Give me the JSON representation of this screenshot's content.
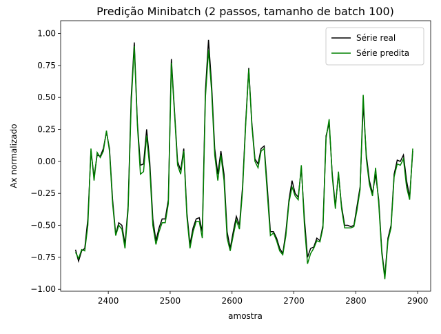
{
  "chart_data": {
    "type": "line",
    "title": "Predição Minibatch (2 passos, tamanho de batch 100)",
    "x_label": "amostra",
    "y_label": "Ax normalizado",
    "x": [
      2347,
      2352,
      2357,
      2362,
      2367,
      2372,
      2377,
      2382,
      2387,
      2392,
      2397,
      2402,
      2407,
      2412,
      2417,
      2422,
      2427,
      2432,
      2437,
      2442,
      2447,
      2452,
      2457,
      2462,
      2467,
      2472,
      2477,
      2482,
      2487,
      2492,
      2497,
      2502,
      2507,
      2512,
      2517,
      2522,
      2527,
      2532,
      2537,
      2542,
      2547,
      2552,
      2557,
      2562,
      2567,
      2572,
      2577,
      2582,
      2587,
      2592,
      2597,
      2602,
      2607,
      2612,
      2617,
      2622,
      2627,
      2632,
      2637,
      2642,
      2647,
      2652,
      2657,
      2662,
      2667,
      2672,
      2677,
      2682,
      2687,
      2692,
      2697,
      2702,
      2707,
      2712,
      2717,
      2722,
      2727,
      2732,
      2737,
      2742,
      2747,
      2752,
      2757,
      2762,
      2767,
      2772,
      2777,
      2782,
      2787,
      2792,
      2797,
      2802,
      2807,
      2812,
      2817,
      2822,
      2827,
      2832,
      2837,
      2842,
      2847,
      2852,
      2857,
      2862,
      2867,
      2872,
      2877,
      2882,
      2887,
      2892
    ],
    "series": [
      {
        "name": "Série real",
        "color": "#000000",
        "values": [
          -0.69,
          -0.78,
          -0.7,
          -0.68,
          -0.45,
          0.08,
          -0.12,
          0.05,
          0.04,
          0.1,
          0.23,
          0.1,
          -0.3,
          -0.57,
          -0.48,
          -0.5,
          -0.65,
          -0.35,
          0.5,
          0.93,
          0.3,
          -0.03,
          -0.02,
          0.25,
          0.0,
          -0.45,
          -0.62,
          -0.52,
          -0.45,
          -0.45,
          -0.3,
          0.8,
          0.4,
          0.0,
          -0.07,
          0.1,
          -0.4,
          -0.65,
          -0.52,
          -0.45,
          -0.44,
          -0.55,
          0.55,
          0.95,
          0.6,
          0.1,
          -0.1,
          0.08,
          -0.1,
          -0.55,
          -0.68,
          -0.55,
          -0.43,
          -0.5,
          -0.2,
          0.3,
          0.73,
          0.3,
          0.02,
          -0.02,
          0.1,
          0.12,
          -0.2,
          -0.55,
          -0.55,
          -0.6,
          -0.68,
          -0.72,
          -0.55,
          -0.3,
          -0.15,
          -0.25,
          -0.28,
          -0.05,
          -0.45,
          -0.75,
          -0.68,
          -0.67,
          -0.6,
          -0.62,
          -0.5,
          0.2,
          0.3,
          -0.1,
          -0.35,
          -0.1,
          -0.35,
          -0.5,
          -0.5,
          -0.51,
          -0.5,
          -0.35,
          -0.2,
          0.45,
          0.05,
          -0.15,
          -0.25,
          -0.1,
          -0.3,
          -0.7,
          -0.9,
          -0.6,
          -0.5,
          -0.1,
          0.01,
          0.0,
          0.05,
          -0.15,
          -0.28,
          0.08
        ]
      },
      {
        "name": "Série predita",
        "color": "#008000",
        "values": [
          -0.71,
          -0.76,
          -0.69,
          -0.7,
          -0.5,
          0.1,
          -0.15,
          0.07,
          0.03,
          0.08,
          0.24,
          0.08,
          -0.33,
          -0.58,
          -0.5,
          -0.53,
          -0.68,
          -0.38,
          0.45,
          0.9,
          0.28,
          -0.1,
          -0.08,
          0.2,
          -0.05,
          -0.5,
          -0.65,
          -0.55,
          -0.48,
          -0.48,
          -0.33,
          0.77,
          0.38,
          -0.03,
          -0.1,
          0.08,
          -0.43,
          -0.68,
          -0.55,
          -0.47,
          -0.47,
          -0.6,
          0.5,
          0.87,
          0.55,
          0.05,
          -0.15,
          0.05,
          -0.15,
          -0.6,
          -0.7,
          -0.58,
          -0.46,
          -0.53,
          -0.23,
          0.28,
          0.72,
          0.28,
          0.0,
          -0.05,
          0.08,
          0.1,
          -0.25,
          -0.58,
          -0.56,
          -0.62,
          -0.7,
          -0.73,
          -0.58,
          -0.32,
          -0.2,
          -0.27,
          -0.3,
          -0.03,
          -0.5,
          -0.8,
          -0.72,
          -0.68,
          -0.62,
          -0.63,
          -0.52,
          0.18,
          0.33,
          -0.12,
          -0.37,
          -0.08,
          -0.37,
          -0.52,
          -0.52,
          -0.52,
          -0.51,
          -0.38,
          -0.22,
          0.52,
          0.02,
          -0.18,
          -0.27,
          -0.05,
          -0.33,
          -0.72,
          -0.92,
          -0.62,
          -0.52,
          -0.12,
          -0.02,
          -0.03,
          0.02,
          -0.2,
          -0.3,
          0.1
        ]
      }
    ],
    "xlim": [
      2323,
      2921
    ],
    "ylim": [
      -1.015,
      1.1
    ],
    "xticks": [
      2400,
      2500,
      2600,
      2700,
      2800,
      2900
    ],
    "yticks": [
      {
        "value": 1,
        "label": "1.00"
      },
      {
        "value": 0.75,
        "label": "0.75"
      },
      {
        "value": 0.5,
        "label": "0.50"
      },
      {
        "value": 0.25,
        "label": "0.25"
      },
      {
        "value": 0,
        "label": "0.00"
      },
      {
        "value": -0.25,
        "label": "−0.25"
      },
      {
        "value": -0.5,
        "label": "−0.50"
      },
      {
        "value": -0.75,
        "label": "−0.75"
      },
      {
        "value": -1,
        "label": "−1.00"
      }
    ],
    "legend": "upper right",
    "grid": false
  }
}
